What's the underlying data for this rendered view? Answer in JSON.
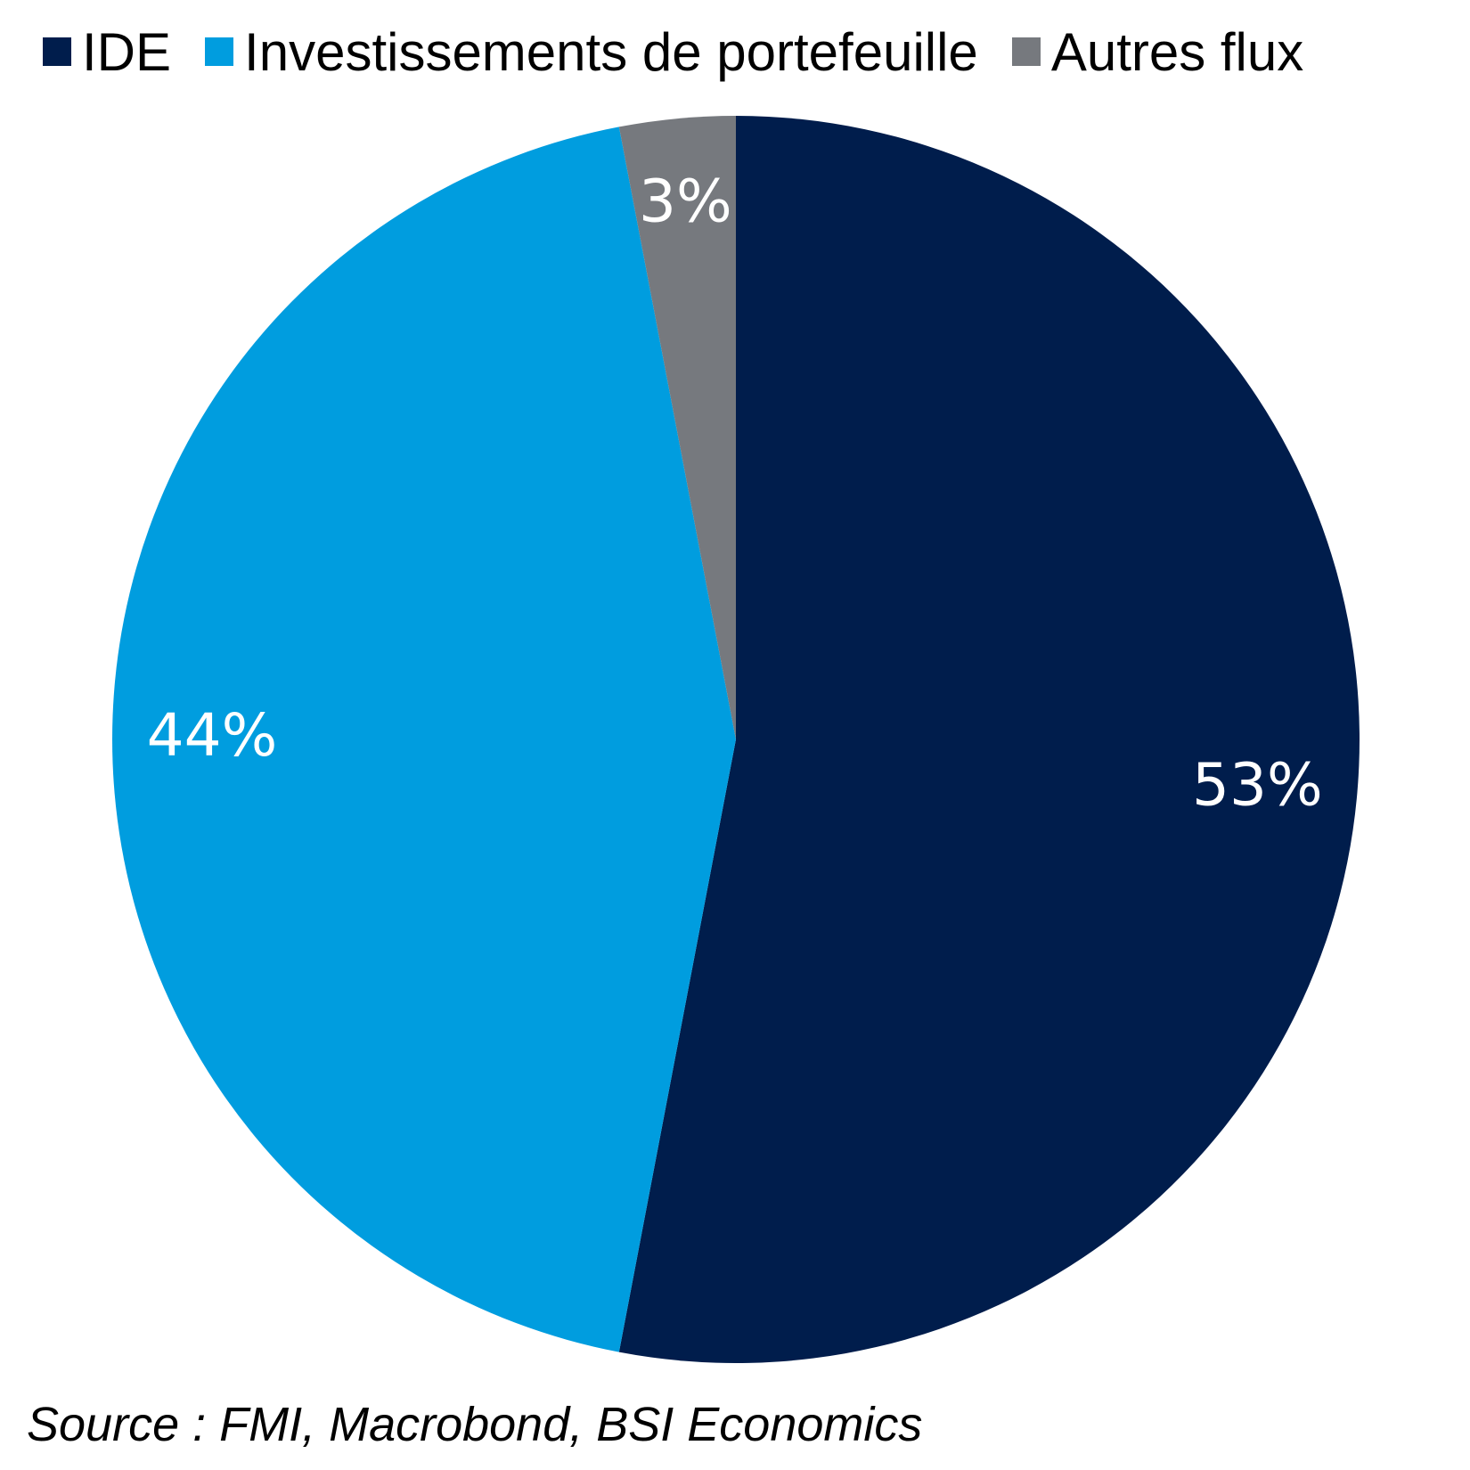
{
  "chart_data": {
    "type": "pie",
    "categories": [
      "IDE",
      "Investissements de portefeuille",
      "Autres flux"
    ],
    "values": [
      53,
      44,
      3
    ],
    "value_labels": [
      "53%",
      "44%",
      "3%"
    ],
    "colors": [
      "#001d4c",
      "#009ddf",
      "#76797e"
    ],
    "start": "top",
    "direction": "clockwise",
    "legend_position": "top"
  },
  "legend": {
    "items": [
      {
        "label": "IDE",
        "color": "#001d4c"
      },
      {
        "label": "Investissements de portefeuille",
        "color": "#009ddf"
      },
      {
        "label": "Autres flux",
        "color": "#76797e"
      }
    ]
  },
  "source": "Source : FMI, Macrobond, BSI Economics"
}
